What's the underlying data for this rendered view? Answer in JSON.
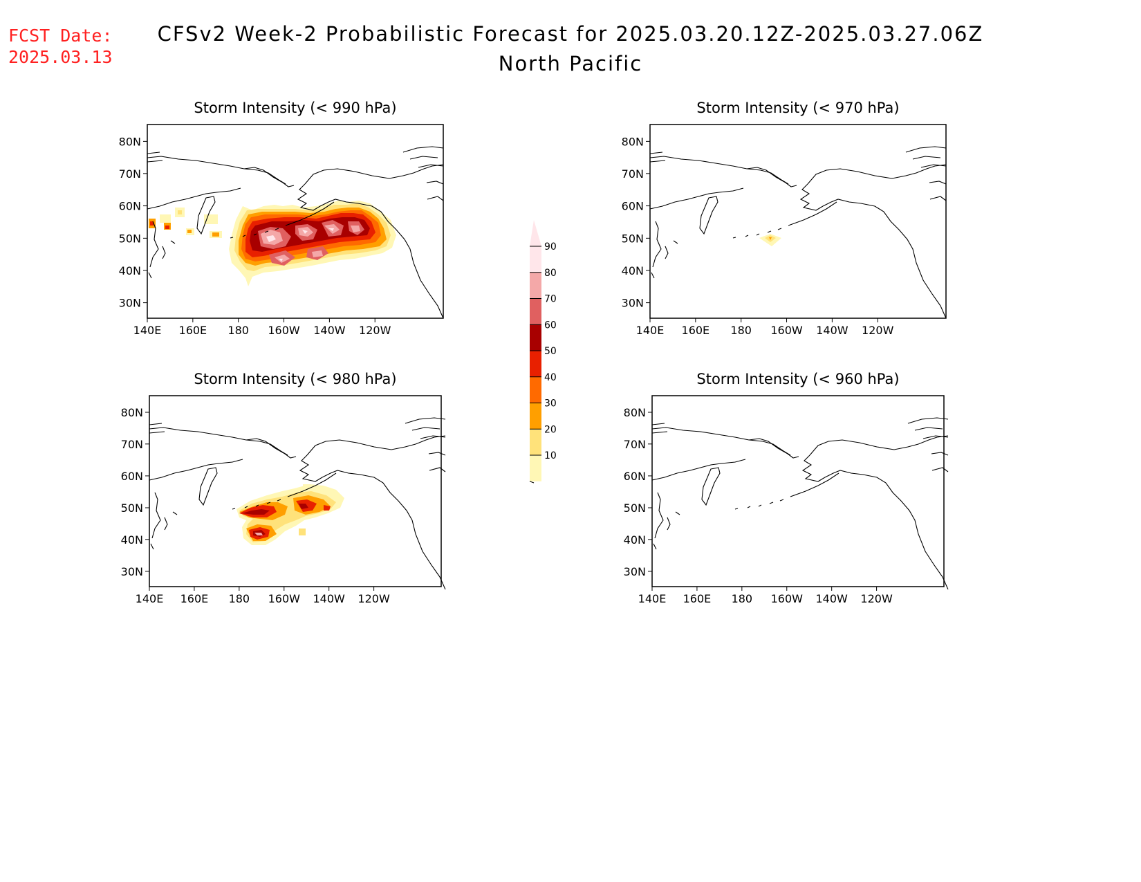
{
  "fcst": {
    "label": "FCST Date:",
    "date": "2025.03.13"
  },
  "title": {
    "line1": "CFSv2 Week-2 Probabilistic Forecast for 2025.03.20.12Z-2025.03.27.06Z",
    "line2": "North Pacific"
  },
  "axes": {
    "lon_ticks": [
      "140E",
      "160E",
      "180",
      "160W",
      "140W",
      "120W"
    ],
    "lat_ticks": [
      "80N",
      "70N",
      "60N",
      "50N",
      "40N",
      "30N"
    ]
  },
  "panels": [
    {
      "title": "Storm Intensity (< 990 hPa)"
    },
    {
      "title": "Storm Intensity (< 970 hPa)"
    },
    {
      "title": "Storm Intensity (< 980 hPa)"
    },
    {
      "title": "Storm Intensity (< 960 hPa)"
    }
  ],
  "colorbar": {
    "labels": [
      "90",
      "80",
      "70",
      "60",
      "50",
      "40",
      "30",
      "20",
      "10"
    ],
    "colors": [
      "#fff7b5",
      "#ffe27a",
      "#ff9f00",
      "#ff6a00",
      "#e82000",
      "#a80000",
      "#e06060",
      "#f4a8a8",
      "#ffe6ea"
    ]
  }
}
